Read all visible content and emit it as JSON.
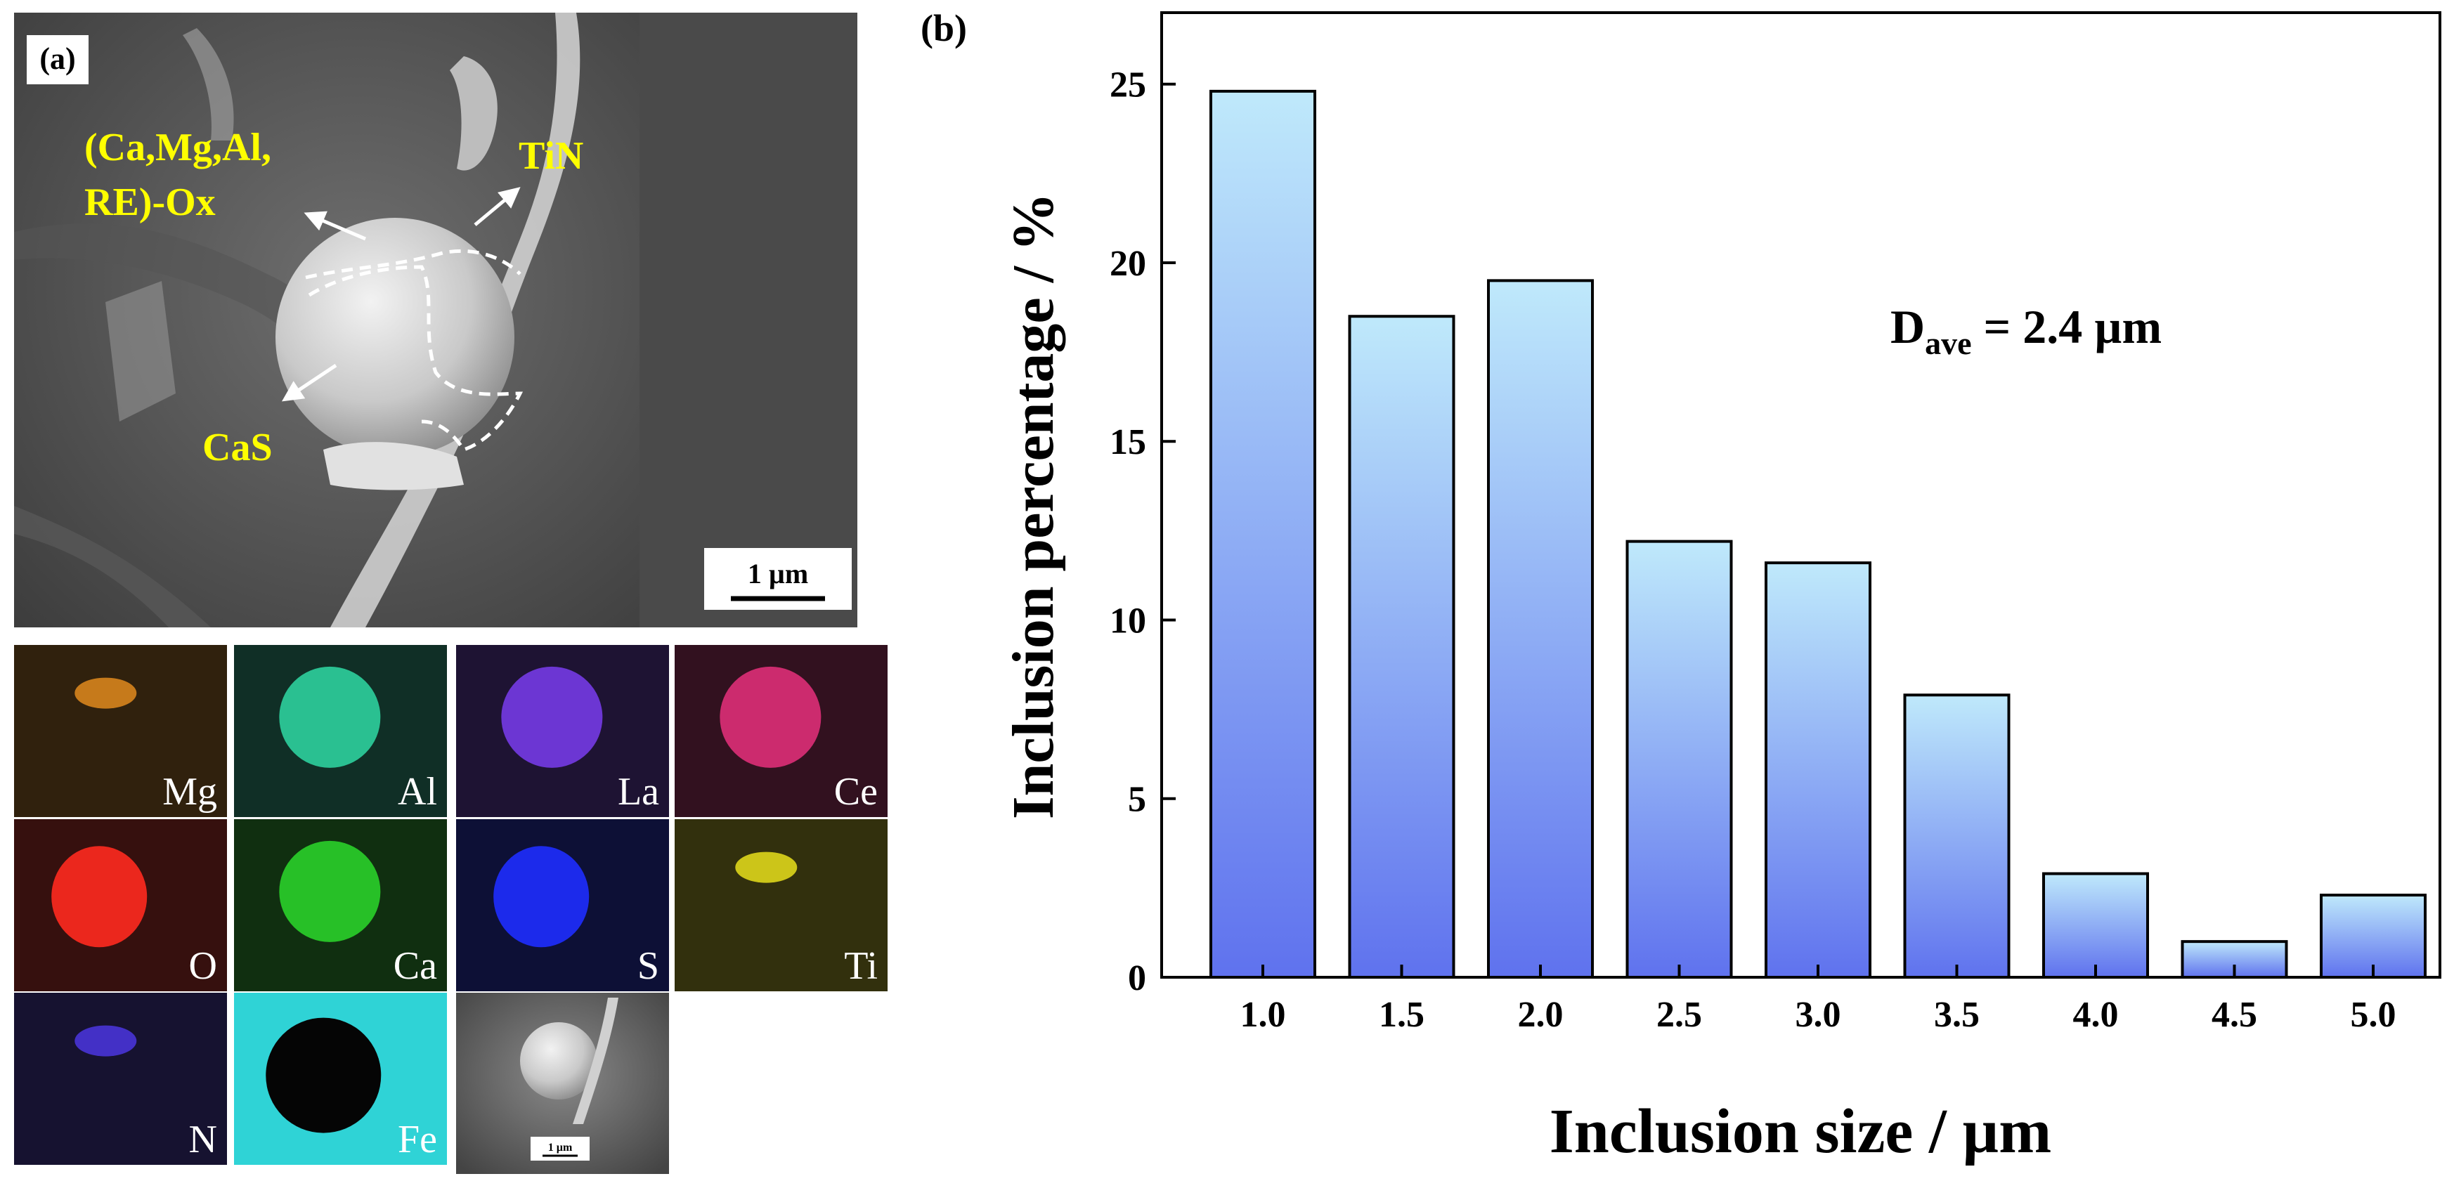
{
  "panel_a": {
    "label": "(a)",
    "sem": {
      "annotations": {
        "oxide_line1": "(Ca,Mg,Al,",
        "oxide_line2": "RE)-Ox",
        "tin": "TiN",
        "cas": "CaS"
      },
      "scale_bar": "1 µm"
    },
    "maps": [
      {
        "element": "Mg",
        "color": "#e08a1e"
      },
      {
        "element": "Al",
        "color": "#2fd9a4"
      },
      {
        "element": "La",
        "color": "#7a3df0"
      },
      {
        "element": "Ce",
        "color": "#e8307d"
      },
      {
        "element": "O",
        "color": "#ff2a1f"
      },
      {
        "element": "Ca",
        "color": "#2bd92b"
      },
      {
        "element": "S",
        "color": "#1e2dff"
      },
      {
        "element": "Ti",
        "color": "#e7df1c"
      },
      {
        "element": "N",
        "color": "#4b36e0"
      },
      {
        "element": "Fe",
        "color": "#2fd3d6"
      }
    ],
    "thumb_scale_bar": "1 µm"
  },
  "panel_b": {
    "label": "(b)",
    "annotation": {
      "main": "D",
      "sub": "ave",
      "rest": " = 2.4 µm"
    }
  },
  "chart_data": {
    "type": "bar",
    "categories": [
      "1.0",
      "1.5",
      "2.0",
      "2.5",
      "3.0",
      "3.5",
      "4.0",
      "4.5",
      "5.0"
    ],
    "values": [
      24.8,
      18.5,
      19.5,
      12.2,
      11.6,
      7.9,
      2.9,
      1.0,
      2.3
    ],
    "xlabel": "Inclusion size / µm",
    "ylabel": "Inclusion percentage / %",
    "ylim": [
      0,
      27
    ],
    "yticks": [
      0,
      5,
      10,
      15,
      20,
      25
    ],
    "grid": false
  }
}
